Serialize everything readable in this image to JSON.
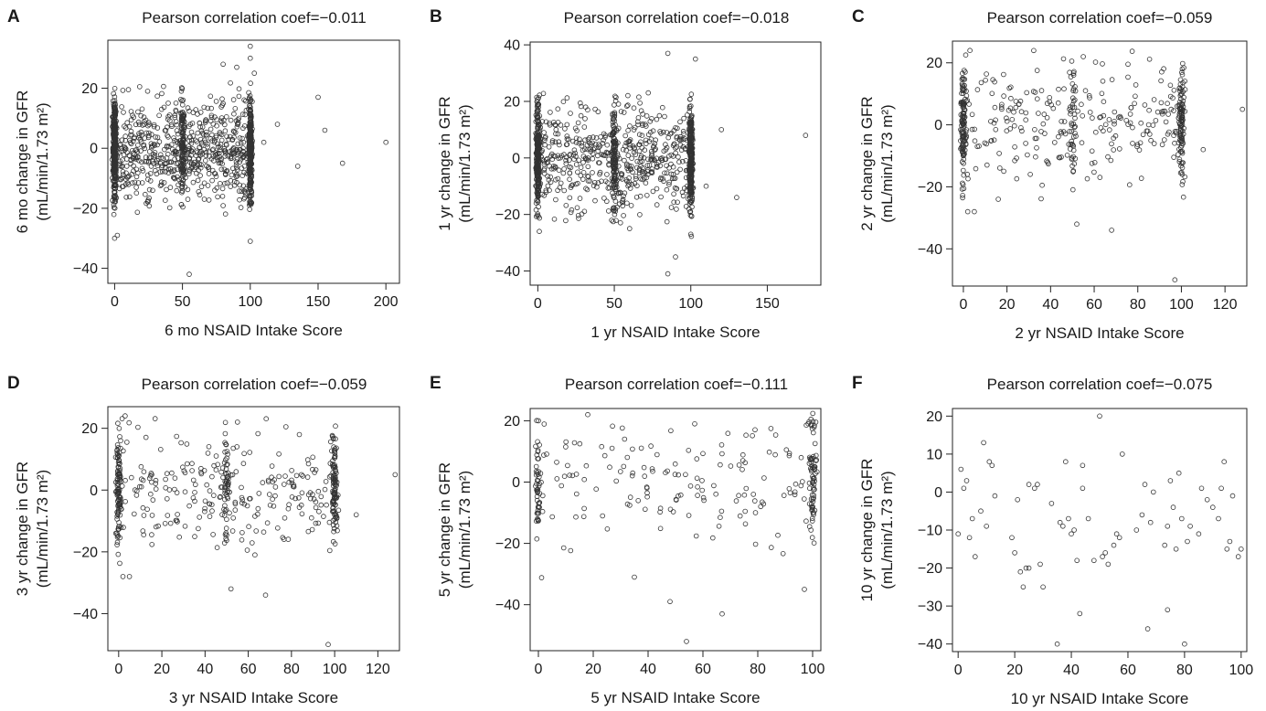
{
  "chart_data": [
    {
      "type": "scatter",
      "panel": "A",
      "title": "Pearson correlation coef=−0.011",
      "xlabel": "6 mo NSAID Intake Score",
      "ylabel_line1": "6 mo change in GFR",
      "ylabel_line2": "(mL/min/1.73 m²)",
      "xlim": [
        -5,
        210
      ],
      "ylim": [
        -45,
        36
      ],
      "xticks": [
        0,
        50,
        100,
        150,
        200
      ],
      "yticks": [
        -40,
        -20,
        0,
        20
      ],
      "x_values": [
        0,
        25,
        50,
        75,
        100
      ],
      "x_sd": 32,
      "y_sd": 8.5,
      "n_points": 1300,
      "outliers": [
        [
          0,
          -30
        ],
        [
          2,
          -29
        ],
        [
          55,
          -42
        ],
        [
          100,
          34
        ],
        [
          100,
          30
        ],
        [
          100,
          -31
        ],
        [
          110,
          2
        ],
        [
          120,
          8
        ],
        [
          135,
          -6
        ],
        [
          150,
          17
        ],
        [
          155,
          6
        ],
        [
          168,
          -5
        ],
        [
          200,
          2
        ],
        [
          80,
          28
        ],
        [
          90,
          27
        ],
        [
          103,
          25
        ]
      ]
    },
    {
      "type": "scatter",
      "panel": "B",
      "title": "Pearson correlation coef=−0.018",
      "xlabel": "1 yr NSAID Intake Score",
      "ylabel_line1": "1 yr change in GFR",
      "ylabel_line2": "(mL/min/1.73 m²)",
      "xlim": [
        -5,
        185
      ],
      "ylim": [
        -45,
        41
      ],
      "xticks": [
        0,
        50,
        100,
        150
      ],
      "yticks": [
        -40,
        -20,
        0,
        20,
        40
      ],
      "x_values": [
        0,
        25,
        50,
        75,
        100
      ],
      "x_sd": 32,
      "y_sd": 9,
      "n_points": 1200,
      "outliers": [
        [
          85,
          37
        ],
        [
          103,
          35
        ],
        [
          85,
          -41
        ],
        [
          100,
          -27
        ],
        [
          110,
          -10
        ],
        [
          120,
          10
        ],
        [
          130,
          -14
        ],
        [
          175,
          8
        ],
        [
          1,
          -26
        ],
        [
          60,
          -25
        ],
        [
          90,
          -35
        ]
      ]
    },
    {
      "type": "scatter",
      "panel": "C",
      "title": "Pearson correlation coef=−0.059",
      "xlabel": "2 yr NSAID Intake Score",
      "ylabel_line1": "2 yr change in GFR",
      "ylabel_line2": "(mL/min/1.73 m²)",
      "xlim": [
        -5,
        130
      ],
      "ylim": [
        -52,
        27
      ],
      "xticks": [
        0,
        20,
        40,
        60,
        80,
        100,
        120
      ],
      "yticks": [
        -40,
        -20,
        0,
        20
      ],
      "x_values": [
        0,
        30,
        50,
        70,
        100
      ],
      "x_sd": 30,
      "y_sd": 9.5,
      "n_points": 500,
      "outliers": [
        [
          97,
          -50
        ],
        [
          68,
          -34
        ],
        [
          128,
          5
        ],
        [
          110,
          -8
        ],
        [
          2,
          -28
        ],
        [
          5,
          -28
        ],
        [
          3,
          24
        ],
        [
          55,
          22
        ],
        [
          52,
          -32
        ]
      ]
    },
    {
      "type": "scatter",
      "panel": "D",
      "title": "Pearson correlation coef=−0.059",
      "xlabel": "3 yr NSAID Intake Score",
      "ylabel_line1": "3 yr change in GFR",
      "ylabel_line2": "(mL/min/1.73 m²)",
      "xlim": [
        -5,
        130
      ],
      "ylim": [
        -52,
        27
      ],
      "xticks": [
        0,
        20,
        40,
        60,
        80,
        100,
        120
      ],
      "yticks": [
        -40,
        -20,
        0,
        20
      ],
      "x_values": [
        0,
        30,
        50,
        70,
        100
      ],
      "x_sd": 30,
      "y_sd": 9.5,
      "n_points": 500,
      "outliers": [
        [
          97,
          -50
        ],
        [
          68,
          -34
        ],
        [
          128,
          5
        ],
        [
          110,
          -8
        ],
        [
          2,
          -28
        ],
        [
          5,
          -28
        ],
        [
          3,
          24
        ],
        [
          55,
          22
        ],
        [
          52,
          -32
        ]
      ]
    },
    {
      "type": "scatter",
      "panel": "E",
      "title": "Pearson correlation coef=−0.111",
      "xlabel": "5 yr NSAID Intake Score",
      "ylabel_line1": "5 yr change in GFR",
      "ylabel_line2": "(mL/min/1.73 m²)",
      "xlim": [
        -3,
        103
      ],
      "ylim": [
        -55,
        24
      ],
      "xticks": [
        0,
        20,
        40,
        60,
        80,
        100
      ],
      "yticks": [
        -40,
        -20,
        0,
        20
      ],
      "x_values": [
        0,
        20,
        40,
        60,
        80,
        100
      ],
      "x_sd": 30,
      "y_sd": 10,
      "n_points": 270,
      "outliers": [
        [
          54,
          -52
        ],
        [
          67,
          -43
        ],
        [
          48,
          -39
        ],
        [
          97,
          -35
        ],
        [
          35,
          -31
        ],
        [
          18,
          22
        ],
        [
          57,
          19
        ],
        [
          0,
          20
        ]
      ]
    },
    {
      "type": "scatter",
      "panel": "F",
      "title": "Pearson correlation coef=−0.075",
      "xlabel": "10 yr NSAID Intake Score",
      "ylabel_line1": "10 yr change in GFR",
      "ylabel_line2": "(mL/min/1.73 m²)",
      "xlim": [
        -2,
        102
      ],
      "ylim": [
        -42,
        22
      ],
      "xticks": [
        0,
        20,
        40,
        60,
        80,
        100
      ],
      "yticks": [
        -40,
        -30,
        -20,
        -10,
        0,
        10,
        20
      ],
      "points": [
        [
          0,
          -11
        ],
        [
          1,
          6
        ],
        [
          2,
          1
        ],
        [
          3,
          3
        ],
        [
          4,
          -12
        ],
        [
          5,
          -7
        ],
        [
          6,
          -17
        ],
        [
          8,
          -5
        ],
        [
          9,
          13
        ],
        [
          10,
          -9
        ],
        [
          11,
          8
        ],
        [
          12,
          7
        ],
        [
          13,
          -1
        ],
        [
          19,
          -12
        ],
        [
          20,
          -16
        ],
        [
          21,
          -2
        ],
        [
          22,
          -21
        ],
        [
          23,
          -25
        ],
        [
          24,
          -20
        ],
        [
          25,
          -20
        ],
        [
          25,
          2
        ],
        [
          27,
          1
        ],
        [
          28,
          2
        ],
        [
          29,
          -19
        ],
        [
          30,
          -25
        ],
        [
          33,
          -3
        ],
        [
          35,
          -40
        ],
        [
          36,
          -8
        ],
        [
          37,
          -9
        ],
        [
          38,
          8
        ],
        [
          39,
          -7
        ],
        [
          40,
          -11
        ],
        [
          41,
          -10
        ],
        [
          42,
          -18
        ],
        [
          43,
          -32
        ],
        [
          44,
          7
        ],
        [
          44,
          1
        ],
        [
          46,
          -7
        ],
        [
          48,
          -18
        ],
        [
          50,
          20
        ],
        [
          51,
          -17
        ],
        [
          52,
          -16
        ],
        [
          53,
          -19
        ],
        [
          55,
          -14
        ],
        [
          56,
          -11
        ],
        [
          57,
          -12
        ],
        [
          58,
          10
        ],
        [
          63,
          -10
        ],
        [
          65,
          -6
        ],
        [
          66,
          2
        ],
        [
          67,
          -36
        ],
        [
          68,
          -8
        ],
        [
          69,
          0
        ],
        [
          73,
          -14
        ],
        [
          74,
          -9
        ],
        [
          74,
          -31
        ],
        [
          75,
          3
        ],
        [
          76,
          -4
        ],
        [
          77,
          -15
        ],
        [
          78,
          5
        ],
        [
          79,
          -7
        ],
        [
          80,
          -40
        ],
        [
          81,
          -13
        ],
        [
          82,
          -9
        ],
        [
          85,
          -11
        ],
        [
          86,
          1
        ],
        [
          88,
          -2
        ],
        [
          90,
          -4
        ],
        [
          92,
          -7
        ],
        [
          93,
          1
        ],
        [
          94,
          8
        ],
        [
          95,
          -15
        ],
        [
          96,
          -13
        ],
        [
          97,
          -1
        ],
        [
          99,
          -17
        ],
        [
          100,
          -15
        ]
      ]
    }
  ]
}
